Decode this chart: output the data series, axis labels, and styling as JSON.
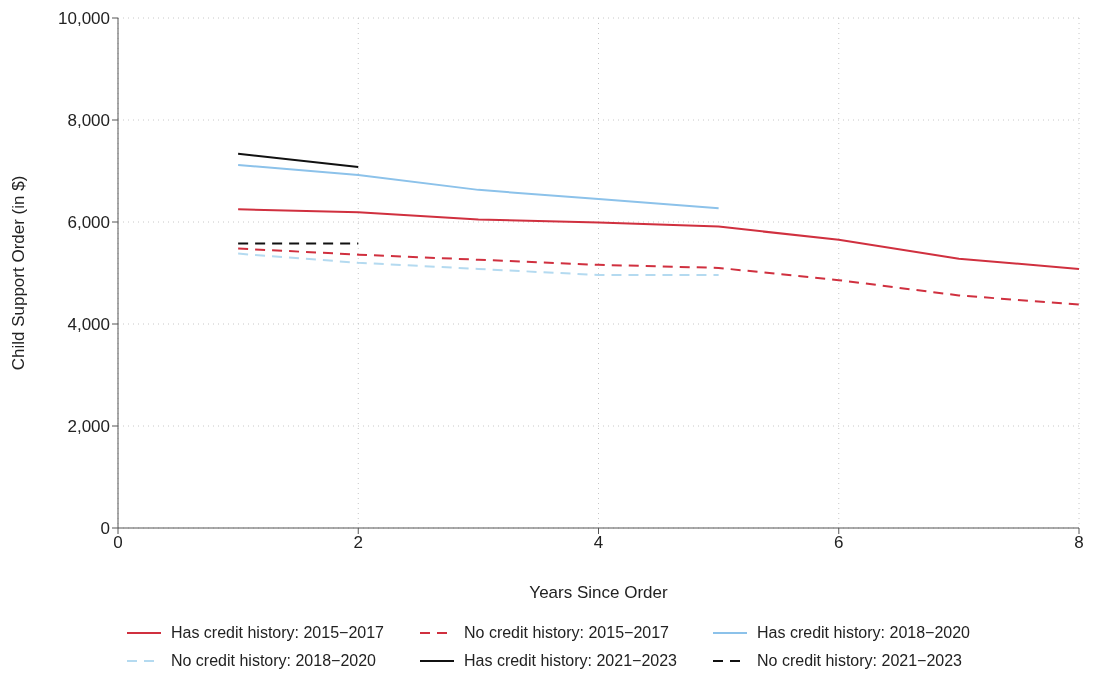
{
  "chart_data": {
    "type": "line",
    "xlabel": "Years Since Order",
    "ylabel": "Child Support Order (in $)",
    "xlim": [
      0,
      8
    ],
    "xticks": [
      0,
      2,
      4,
      6,
      8
    ],
    "ylim": [
      0,
      10000
    ],
    "yticks": [
      {
        "value": 0,
        "label": "0"
      },
      {
        "value": 2000,
        "label": "2,000"
      },
      {
        "value": 4000,
        "label": "4,000"
      },
      {
        "value": 6000,
        "label": "6,000"
      },
      {
        "value": 8000,
        "label": "8,000"
      },
      {
        "value": 10000,
        "label": "10,000"
      }
    ],
    "grid": true,
    "legend": "bottom",
    "marker": "none",
    "series": [
      {
        "name": "Has credit history: 2015−2017",
        "color": "#d0303f",
        "line_style": "solid",
        "x": [
          1,
          2,
          3,
          4,
          5,
          6,
          7,
          8
        ],
        "values": [
          6250,
          6190,
          6050,
          5990,
          5910,
          5650,
          5280,
          5080
        ]
      },
      {
        "name": "Has credit history: 2018−2020",
        "color": "#8cc2ea",
        "line_style": "solid",
        "x": [
          1,
          2,
          3,
          4,
          5
        ],
        "values": [
          7120,
          6920,
          6630,
          6450,
          6270
        ]
      },
      {
        "name": "Has credit history: 2021−2023",
        "color": "#111111",
        "line_style": "solid",
        "x": [
          1,
          2
        ],
        "values": [
          7340,
          7080
        ]
      },
      {
        "name": "No credit history: 2015−2017",
        "color": "#d0303f",
        "line_style": "dashed",
        "x": [
          1,
          2,
          3,
          4,
          5,
          6,
          7,
          8
        ],
        "values": [
          5480,
          5360,
          5260,
          5160,
          5100,
          4860,
          4560,
          4380
        ]
      },
      {
        "name": "No credit history: 2018−2020",
        "color": "#b4daf0",
        "line_style": "dashed",
        "x": [
          1,
          2,
          3,
          4,
          5
        ],
        "values": [
          5380,
          5200,
          5080,
          4960,
          4960
        ]
      },
      {
        "name": "No credit history: 2021−2023",
        "color": "#111111",
        "line_style": "dashed",
        "x": [
          1,
          2
        ],
        "values": [
          5580,
          5580
        ]
      }
    ]
  }
}
